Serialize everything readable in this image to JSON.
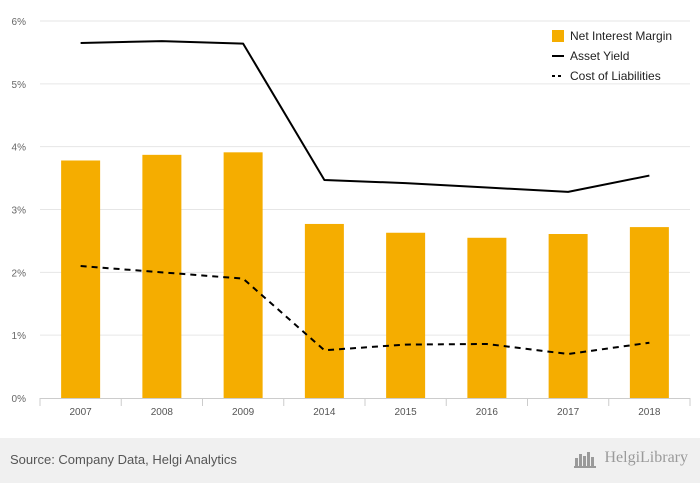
{
  "chart_data": {
    "type": "bar",
    "categories": [
      "2007",
      "2008",
      "2009",
      "2014",
      "2015",
      "2016",
      "2017",
      "2018"
    ],
    "series": [
      {
        "name": "Net Interest Margin",
        "kind": "bar",
        "color": "#f5ad00",
        "values": [
          3.78,
          3.87,
          3.91,
          2.77,
          2.63,
          2.55,
          2.61,
          2.72
        ]
      },
      {
        "name": "Asset Yield",
        "kind": "line",
        "style": "solid",
        "color": "#000000",
        "values": [
          5.65,
          5.68,
          5.64,
          3.47,
          3.42,
          3.35,
          3.28,
          3.54
        ]
      },
      {
        "name": "Cost of Liabilities",
        "kind": "line",
        "style": "dashed",
        "color": "#000000",
        "values": [
          2.1,
          2.0,
          1.9,
          0.76,
          0.85,
          0.86,
          0.7,
          0.88
        ]
      }
    ],
    "y_ticks": [
      "0%",
      "1%",
      "2%",
      "3%",
      "4%",
      "5%",
      "6%"
    ],
    "ylim": [
      0,
      6
    ],
    "ylabel": "",
    "xlabel": "",
    "grid": true,
    "legend_position": "top-right"
  },
  "footer": {
    "source": "Source: Company Data, Helgi Analytics",
    "brand": "HelgiLibrary"
  }
}
